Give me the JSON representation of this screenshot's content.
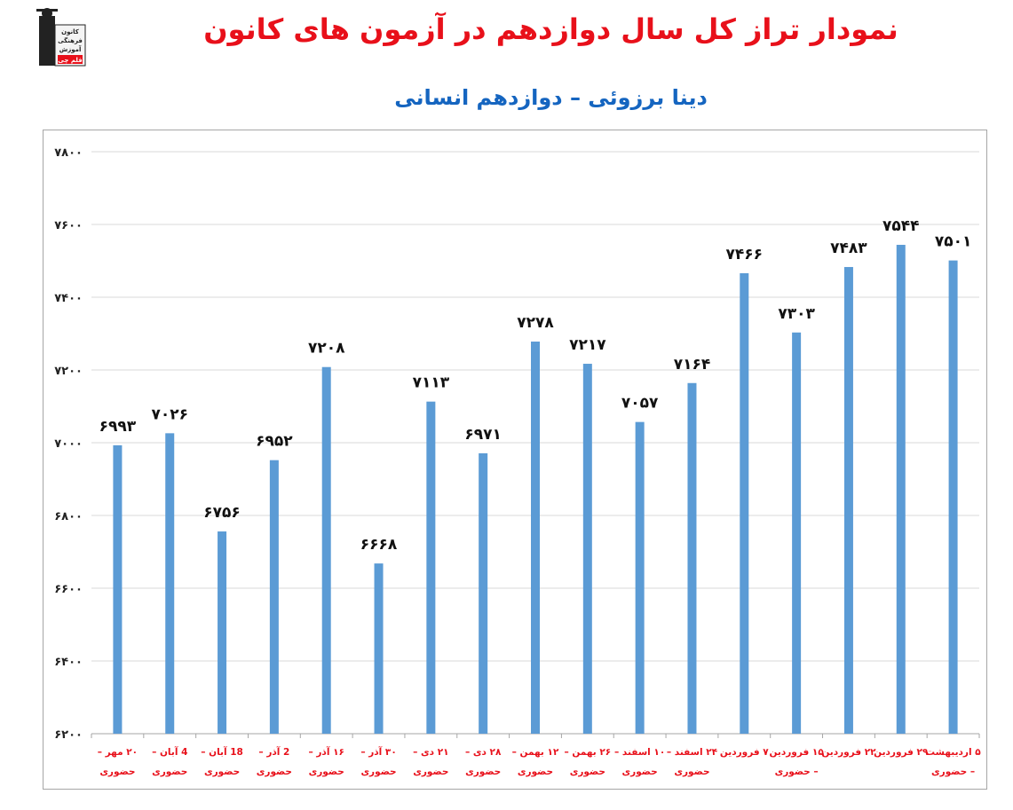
{
  "header": {
    "title": "نمودار تراز کل سال دوازدهم در آزمون های کانون",
    "subtitle": "دینا برزوئی – دوازدهم انسانی",
    "logo_text": [
      "کانون",
      "فرهنگی",
      "آموزش",
      "قلم چی"
    ]
  },
  "chart_data": {
    "type": "bar",
    "title": "",
    "xlabel": "",
    "ylabel": "",
    "ylim": [
      6200,
      7800
    ],
    "y_ticks": [
      6200,
      6400,
      6600,
      6800,
      7000,
      7200,
      7400,
      7600,
      7800
    ],
    "y_tick_labels": [
      "۶۲۰۰",
      "۶۴۰۰",
      "۶۶۰۰",
      "۶۸۰۰",
      "۷۰۰۰",
      "۷۲۰۰",
      "۷۴۰۰",
      "۷۶۰۰",
      "۷۸۰۰"
    ],
    "grid": true,
    "legend": "none",
    "bar_color": "#5b9bd5",
    "label_color": "#e8101a",
    "categories": [
      [
        "۲۰ مهر –",
        "حضوری"
      ],
      [
        "4 آبان –",
        "حضوری"
      ],
      [
        "18 آبان –",
        "حضوری"
      ],
      [
        "2 آذر –",
        "حضوری"
      ],
      [
        "۱۶ آذر –",
        "حضوری"
      ],
      [
        "۳۰ آذر –",
        "حضوری"
      ],
      [
        "۲۱ دی –",
        "حضوری"
      ],
      [
        "۲۸ دی –",
        "حضوری"
      ],
      [
        "۱۲ بهمن –",
        "حضوری"
      ],
      [
        "۲۶ بهمن –",
        "حضوری"
      ],
      [
        "۱۰ اسفند –",
        "حضوری"
      ],
      [
        "۲۴ اسفند –",
        "حضوری"
      ],
      [
        "۷ فروردین",
        ""
      ],
      [
        "۱۵ فروردین",
        "– حضوری"
      ],
      [
        "۲۲ فروردین",
        ""
      ],
      [
        "۲۹ فروردین",
        ""
      ],
      [
        "۵ اردیبهشت",
        "– حضوری"
      ]
    ],
    "values": [
      6993,
      7026,
      6756,
      6952,
      7208,
      6668,
      7113,
      6971,
      7278,
      7217,
      7057,
      7164,
      7466,
      7303,
      7483,
      7544,
      7501
    ],
    "value_labels": [
      "۶۹۹۳",
      "۷۰۲۶",
      "۶۷۵۶",
      "۶۹۵۲",
      "۷۲۰۸",
      "۶۶۶۸",
      "۷۱۱۳",
      "۶۹۷۱",
      "۷۲۷۸",
      "۷۲۱۷",
      "۷۰۵۷",
      "۷۱۶۴",
      "۷۴۶۶",
      "۷۳۰۳",
      "۷۴۸۳",
      "۷۵۴۴",
      "۷۵۰۱"
    ]
  }
}
